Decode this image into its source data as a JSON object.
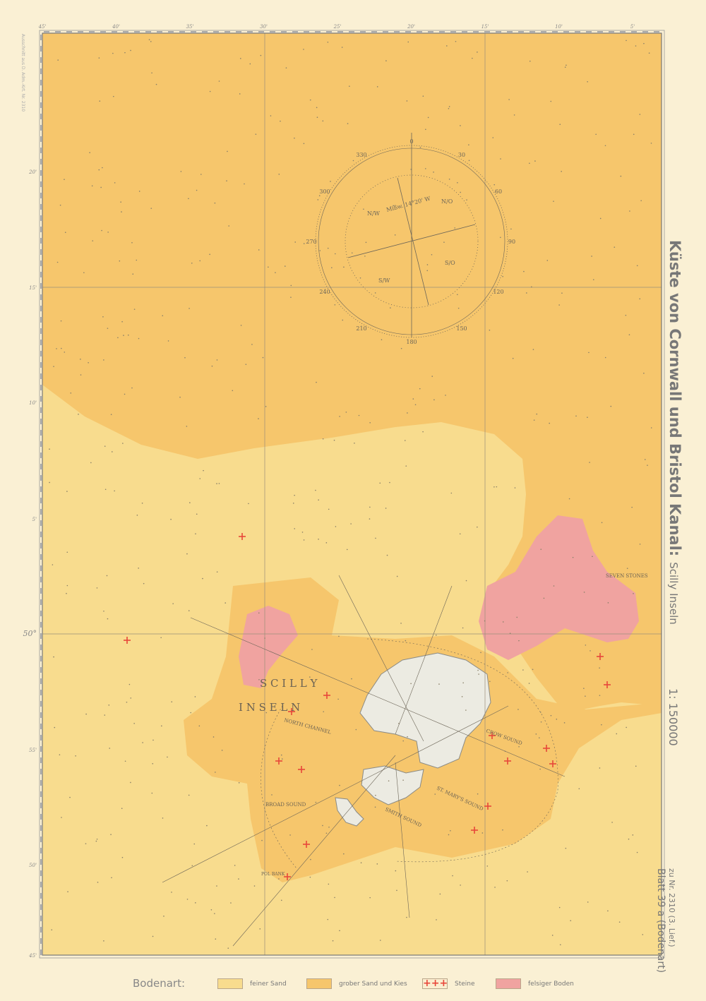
{
  "title": {
    "main": "Küste von Cornwall und Bristol Kanal:",
    "sub": "Scilly Inseln"
  },
  "scale": "1: 150000",
  "reference": {
    "line1": "zu Nr. 2310 (3. Lief.)",
    "line2": "Blatt 39 a (Bodenart)"
  },
  "source_note": "Ausschnitt aus D. Adm.-Krt. Nr. 2310",
  "frame": {
    "top_labels": [
      "45'",
      "40'",
      "35'",
      "30'",
      "25'",
      "20'",
      "15'",
      "10'",
      "5'"
    ],
    "left_labels": [
      "20'",
      "15'",
      "10'",
      "5'",
      "50°",
      "55'",
      "50'",
      "45'"
    ]
  },
  "compass": {
    "variation": "Mißw. 14°20' W",
    "ring_labels": [
      "0",
      "30",
      "60",
      "90",
      "120",
      "150",
      "180",
      "210",
      "240",
      "270",
      "300",
      "330"
    ],
    "inner_labels": [
      "N/O",
      "S/W",
      "N/W",
      "S/O"
    ]
  },
  "place_names": {
    "scilly": "S C I L L Y",
    "inseln": "I N S E L N",
    "north_channel": "NORTH CHANNEL",
    "crow_sound": "CROW SOUND",
    "st_marys_sound": "ST. MARY'S SOUND",
    "smith_sound": "SMITH SOUND",
    "broad_sound": "BROAD SOUND",
    "pol_bank": "POL BANK",
    "seven_stones": "SEVEN STONES"
  },
  "legend": {
    "title": "Bodenart:",
    "items": [
      {
        "label": "feiner Sand",
        "color": "#f8dc8e"
      },
      {
        "label": "grober Sand und Kies",
        "color": "#f6c66c"
      },
      {
        "label": "Steine",
        "color": "#e8473a"
      },
      {
        "label": "felsiger Boden",
        "color": "#f0a3a0"
      }
    ]
  },
  "colors": {
    "paper": "#faf0d4",
    "fine_sand": "#f8dc8e",
    "coarse_sand": "#f6c66c",
    "rock": "#f0a3a0",
    "stones": "#e8473a",
    "land": "#ecebe2"
  }
}
